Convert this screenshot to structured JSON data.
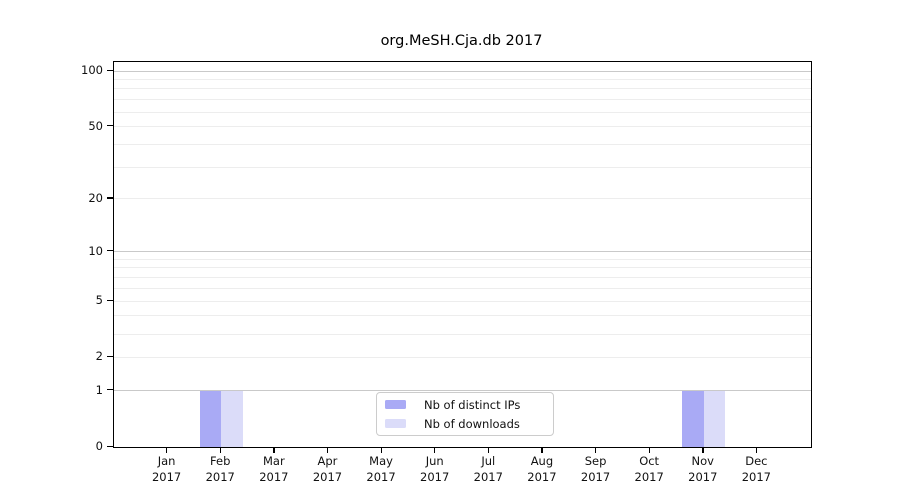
{
  "chart_data": {
    "type": "bar",
    "title": "org.MeSH.Cja.db 2017",
    "categories": [
      "Jan 2017",
      "Feb 2017",
      "Mar 2017",
      "Apr 2017",
      "May 2017",
      "Jun 2017",
      "Jul 2017",
      "Aug 2017",
      "Sep 2017",
      "Oct 2017",
      "Nov 2017",
      "Dec 2017"
    ],
    "series": [
      {
        "name": "Nb of distinct IPs",
        "color": "#a9aaf5",
        "values": [
          0,
          1,
          0,
          0,
          0,
          0,
          0,
          0,
          0,
          0,
          1,
          0
        ]
      },
      {
        "name": "Nb of downloads",
        "color": "#dbdcf9",
        "values": [
          0,
          1,
          0,
          0,
          0,
          0,
          0,
          0,
          0,
          0,
          1,
          0
        ]
      }
    ],
    "xlabel": "",
    "ylabel": "",
    "yscale": "log1p",
    "ylim": [
      0,
      112
    ],
    "yticks": [
      0,
      1,
      2,
      5,
      10,
      20,
      50,
      100
    ],
    "major_gridlines": [
      1,
      10,
      100
    ],
    "minor_gridlines": [
      2,
      3,
      4,
      5,
      6,
      7,
      8,
      9,
      20,
      30,
      40,
      50,
      60,
      70,
      80,
      90
    ],
    "grid": true,
    "legend_position": "lower center",
    "colors": {
      "major_grid": "#c9c9c9",
      "minor_grid": "#ededed",
      "spine": "#000000",
      "text": "#111111",
      "background": "#ffffff"
    }
  }
}
